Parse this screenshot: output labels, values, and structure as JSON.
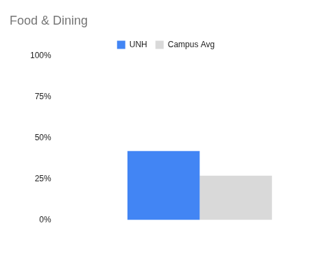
{
  "chart_data": {
    "type": "bar",
    "title": "Food & Dining",
    "categories": [
      null
    ],
    "series": [
      {
        "name": "UNH",
        "color": "#4285f4",
        "values": [
          42
        ]
      },
      {
        "name": "Campus Avg",
        "color": "#d9d9d9",
        "values": [
          27
        ]
      }
    ],
    "ylim": [
      0,
      100
    ],
    "yticks": [
      {
        "value": 0,
        "label": "0%"
      },
      {
        "value": 25,
        "label": "25%"
      },
      {
        "value": 50,
        "label": "50%"
      },
      {
        "value": 75,
        "label": "75%"
      },
      {
        "value": 100,
        "label": "100%"
      }
    ],
    "grid": false,
    "legend": "top"
  }
}
